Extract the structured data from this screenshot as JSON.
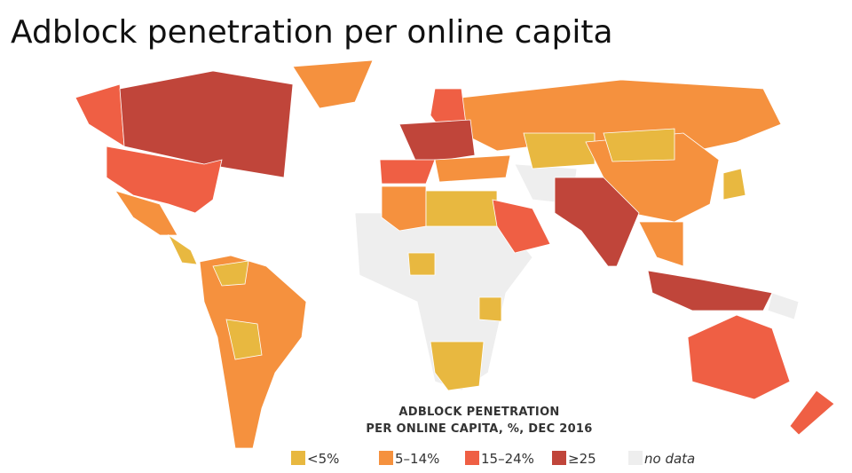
{
  "title": "Adblock penetration per online capita",
  "legend": {
    "title_lines": [
      "ADBLOCK PENETRATION",
      "PER ONLINE CAPITA, %, DEC 2016"
    ],
    "items": [
      {
        "label": "<5%",
        "color": "#e8b840"
      },
      {
        "label": "5–14%",
        "color": "#f5913e"
      },
      {
        "label": "15–24%",
        "color": "#ef5f44"
      },
      {
        "label": "≥25",
        "color": "#c0453a"
      },
      {
        "label": "no data",
        "color": "#eeeeee"
      }
    ]
  }
}
